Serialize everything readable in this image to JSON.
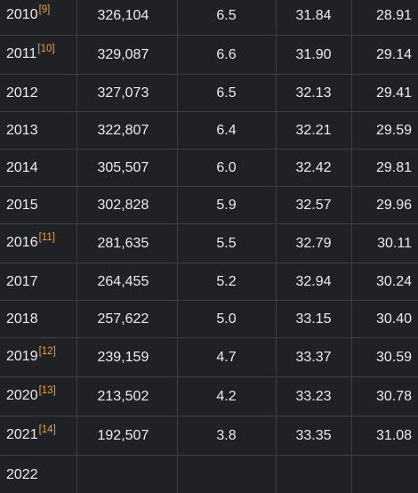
{
  "table": {
    "rows": [
      {
        "year": "2010",
        "ref": "[9]",
        "births": "326,104",
        "rate": "6.5",
        "father_age": "31.84",
        "mother_age": "28.91"
      },
      {
        "year": "2011",
        "ref": "[10]",
        "births": "329,087",
        "rate": "6.6",
        "father_age": "31.90",
        "mother_age": "29.14"
      },
      {
        "year": "2012",
        "ref": "",
        "births": "327,073",
        "rate": "6.5",
        "father_age": "32.13",
        "mother_age": "29.41"
      },
      {
        "year": "2013",
        "ref": "",
        "births": "322,807",
        "rate": "6.4",
        "father_age": "32.21",
        "mother_age": "29.59"
      },
      {
        "year": "2014",
        "ref": "",
        "births": "305,507",
        "rate": "6.0",
        "father_age": "32.42",
        "mother_age": "29.81"
      },
      {
        "year": "2015",
        "ref": "",
        "births": "302,828",
        "rate": "5.9",
        "father_age": "32.57",
        "mother_age": "29.96"
      },
      {
        "year": "2016",
        "ref": "[11]",
        "births": "281,635",
        "rate": "5.5",
        "father_age": "32.79",
        "mother_age": "30.11"
      },
      {
        "year": "2017",
        "ref": "",
        "births": "264,455",
        "rate": "5.2",
        "father_age": "32.94",
        "mother_age": "30.24"
      },
      {
        "year": "2018",
        "ref": "",
        "births": "257,622",
        "rate": "5.0",
        "father_age": "33.15",
        "mother_age": "30.40"
      },
      {
        "year": "2019",
        "ref": "[12]",
        "births": "239,159",
        "rate": "4.7",
        "father_age": "33.37",
        "mother_age": "30.59"
      },
      {
        "year": "2020",
        "ref": "[13]",
        "births": "213,502",
        "rate": "4.2",
        "father_age": "33.23",
        "mother_age": "30.78"
      },
      {
        "year": "2021",
        "ref": "[14]",
        "births": "192,507",
        "rate": "3.8",
        "father_age": "33.35",
        "mother_age": "31.08"
      },
      {
        "year": "2022",
        "ref": "",
        "births": "",
        "rate": "",
        "father_age": "",
        "mother_age": ""
      }
    ]
  },
  "colors": {
    "background": "#202124",
    "text": "#eaecf0",
    "border": "#3c4043",
    "reference_link": "#e8a33d"
  }
}
